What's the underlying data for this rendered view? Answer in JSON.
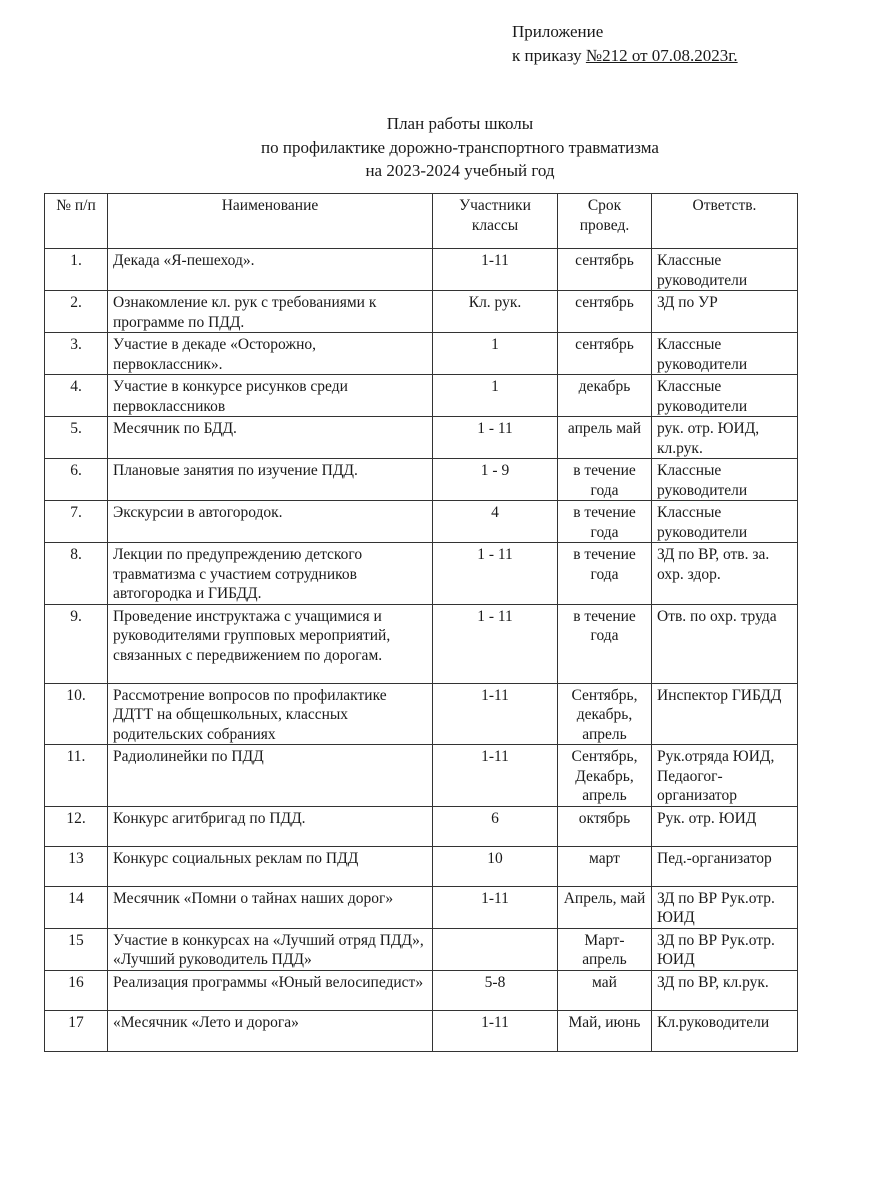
{
  "appendix": {
    "line1": "Приложение",
    "line2_prefix": "к приказу ",
    "order": "№212 от 07.08.2023г."
  },
  "title": {
    "line1": "План работы школы",
    "line2": "по профилактике дорожно-транспортного травматизма",
    "line3": "на 2023-2024 учебный год"
  },
  "table": {
    "headers": [
      "№ п/п",
      "Наименование",
      "Участники классы",
      "Срок провед.",
      "Ответств."
    ],
    "rows": [
      [
        "1.",
        "Декада «Я-пешеход».",
        "1-11",
        "сентябрь",
        "Классные руководители"
      ],
      [
        "2.",
        "Ознакомление кл. рук с требованиями к программе по ПДД.",
        "Кл. рук.",
        "сентябрь",
        "ЗД по УР"
      ],
      [
        "3.",
        "Участие в декаде «Осторожно, первоклассник».",
        "1",
        "сентябрь",
        "Классные руководители"
      ],
      [
        "4.",
        "Участие в конкурсе рисунков среди первоклассников",
        "1",
        "декабрь",
        "Классные руководители"
      ],
      [
        "5.",
        "Месячник по БДД.",
        "1 - 11",
        "апрель май",
        "рук. отр. ЮИД, кл.рук."
      ],
      [
        "6.",
        "Плановые занятия по изучение ПДД.",
        "1 - 9",
        "в течение года",
        "Классные руководители"
      ],
      [
        "7.",
        "Экскурсии в автогородок.",
        "4",
        "в течение года",
        "Классные руководители"
      ],
      [
        "8.",
        "Лекции по предупреждению детского травматизма с участием сотрудников автогородка и ГИБДД.",
        "1 - 11",
        "в течение года",
        "ЗД по ВР, отв. за. охр. здор."
      ],
      [
        "9.",
        "Проведение инструктажа с учащимися и руководителями групповых мероприятий, связанных с передвижением по дорогам.",
        "1 - 11",
        "в течение года",
        "Отв. по охр. труда"
      ],
      [
        "10.",
        "Рассмотрение вопросов по профилактике ДДТТ на общешкольных, классных родительских собраниях",
        "1-11",
        "Сентябрь, декабрь, апрель",
        "Инспектор ГИБДД"
      ],
      [
        "11.",
        "Радиолинейки по ПДД",
        "1-11",
        "Сентябрь, Декабрь, апрель",
        "Рук.отряда ЮИД, Педаогог-организатор"
      ],
      [
        "12.",
        "Конкурс агитбригад по ПДД.",
        "6",
        "октябрь",
        "Рук. отр. ЮИД"
      ],
      [
        "13",
        "Конкурс социальных реклам по ПДД",
        "10",
        "март",
        "Пед.-организатор"
      ],
      [
        "14",
        "Месячник «Помни о тайнах наших дорог»",
        "1-11",
        "Апрель, май",
        "ЗД по ВР Рук.отр. ЮИД"
      ],
      [
        "15",
        "Участие в конкурсах на «Лучший отряд ПДД», «Лучший руководитель ПДД»",
        "",
        "Март-апрель",
        "ЗД по ВР Рук.отр. ЮИД"
      ],
      [
        "16",
        "Реализация программы «Юный велосипедист»",
        "5-8",
        "май",
        "ЗД по ВР, кл.рук."
      ],
      [
        "17",
        "«Месячник «Лето и дорога»",
        "1-11",
        "Май, июнь",
        "Кл.руководители"
      ]
    ]
  }
}
